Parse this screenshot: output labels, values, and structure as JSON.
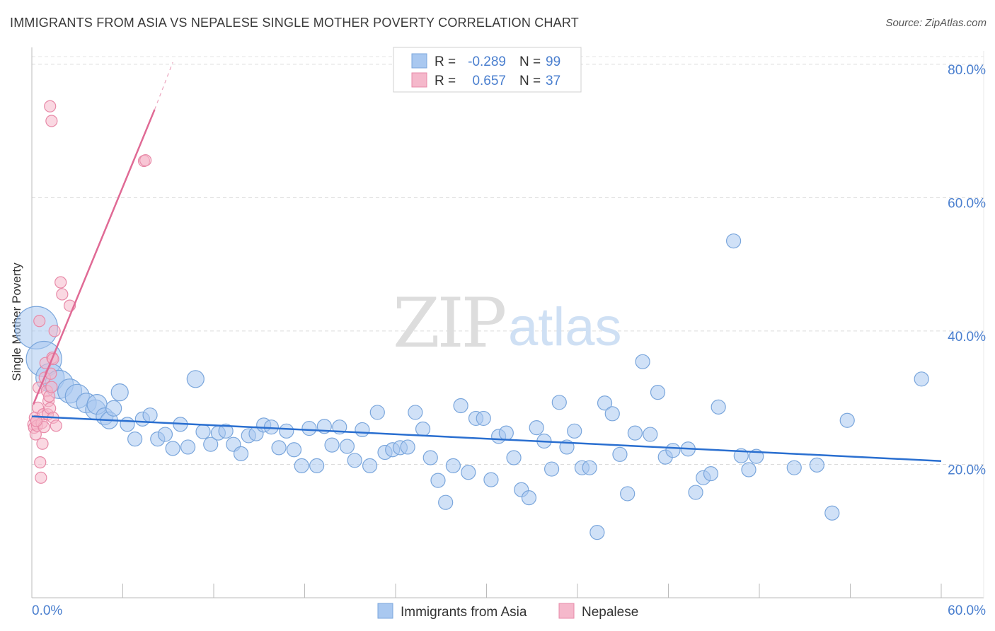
{
  "title": "IMMIGRANTS FROM ASIA VS NEPALESE SINGLE MOTHER POVERTY CORRELATION CHART",
  "source": "Source: ZipAtlas.com",
  "watermark": {
    "zip": "ZIP",
    "atlas": "atlas"
  },
  "legend_box": {
    "rows": [
      {
        "r_label": "R =",
        "r_value": "-0.289",
        "n_label": "N =",
        "n_value": "99",
        "color": "#a9c8f0"
      },
      {
        "r_label": "R =",
        "r_value": "0.657",
        "n_label": "N =",
        "n_value": "37",
        "color": "#f5b8cb"
      }
    ]
  },
  "chart_data": {
    "type": "scatter",
    "title": "IMMIGRANTS FROM ASIA VS NEPALESE SINGLE MOTHER POVERTY CORRELATION CHART",
    "xlabel": "",
    "ylabel": "Single Mother Poverty",
    "xlim": [
      0,
      60
    ],
    "ylim": [
      0,
      82
    ],
    "x_tick_labels": [
      "0.0%",
      "60.0%"
    ],
    "y_ticks": [
      20,
      40,
      60,
      80
    ],
    "y_tick_labels": [
      "20.0%",
      "40.0%",
      "60.0%",
      "80.0%"
    ],
    "grid": true,
    "colors": {
      "asia": "#a9c8f0",
      "asia_edge": "#7aa6dc",
      "asia_line": "#2a6fd0",
      "nepal": "#f5b8cb",
      "nepal_edge": "#e88aa8",
      "nepal_line": "#e06a95",
      "axis_text": "#4a7fcf"
    },
    "series": [
      {
        "name": "Immigrants from Asia",
        "trend": {
          "x0": 0,
          "y0": 27.2,
          "x1": 60,
          "y1": 20.5
        },
        "points": [
          [
            0.3,
            40.5,
            3
          ],
          [
            0.8,
            35.8,
            2.5
          ],
          [
            1.2,
            33.0,
            2
          ],
          [
            1.8,
            32.0,
            2
          ],
          [
            2.5,
            31.0,
            1.7
          ],
          [
            3.0,
            30.2,
            1.7
          ],
          [
            3.6,
            29.2,
            1.4
          ],
          [
            4.2,
            28.2,
            1.4
          ],
          [
            4.3,
            29.0,
            1.4
          ],
          [
            4.8,
            27.2,
            1.2
          ],
          [
            5.1,
            26.6,
            1.2
          ],
          [
            5.4,
            28.4,
            1.1
          ],
          [
            5.8,
            30.8,
            1.2
          ],
          [
            6.3,
            26.0,
            1
          ],
          [
            6.8,
            23.8,
            1
          ],
          [
            7.3,
            26.8,
            1
          ],
          [
            7.8,
            27.4,
            1
          ],
          [
            8.3,
            23.8,
            1
          ],
          [
            8.8,
            24.5,
            1
          ],
          [
            9.3,
            22.4,
            1
          ],
          [
            9.8,
            26.0,
            1
          ],
          [
            10.3,
            22.6,
            1
          ],
          [
            10.8,
            32.8,
            1.2
          ],
          [
            11.3,
            24.9,
            1
          ],
          [
            11.8,
            23.0,
            1
          ],
          [
            12.3,
            24.7,
            1
          ],
          [
            12.8,
            25.0,
            1
          ],
          [
            13.3,
            23.0,
            1
          ],
          [
            13.8,
            21.6,
            1
          ],
          [
            14.3,
            24.3,
            1
          ],
          [
            14.8,
            24.6,
            1
          ],
          [
            15.3,
            25.9,
            1
          ],
          [
            15.8,
            25.6,
            1
          ],
          [
            16.3,
            22.5,
            1
          ],
          [
            16.8,
            25.0,
            1
          ],
          [
            17.3,
            22.2,
            1
          ],
          [
            17.8,
            19.8,
            1
          ],
          [
            18.3,
            25.4,
            1
          ],
          [
            18.8,
            19.8,
            1
          ],
          [
            19.3,
            25.7,
            1
          ],
          [
            19.8,
            22.9,
            1
          ],
          [
            20.3,
            25.6,
            1
          ],
          [
            20.8,
            22.7,
            1
          ],
          [
            21.3,
            20.6,
            1
          ],
          [
            21.8,
            25.2,
            1
          ],
          [
            22.3,
            19.8,
            1
          ],
          [
            22.8,
            27.8,
            1
          ],
          [
            23.3,
            21.8,
            1
          ],
          [
            23.8,
            22.2,
            1
          ],
          [
            24.3,
            22.5,
            1
          ],
          [
            24.8,
            22.6,
            1
          ],
          [
            25.3,
            27.8,
            1
          ],
          [
            25.8,
            25.3,
            1
          ],
          [
            26.3,
            21.0,
            1
          ],
          [
            26.8,
            17.6,
            1
          ],
          [
            27.3,
            14.3,
            1
          ],
          [
            27.8,
            19.8,
            1
          ],
          [
            28.3,
            28.8,
            1
          ],
          [
            28.8,
            18.8,
            1
          ],
          [
            29.3,
            26.9,
            1
          ],
          [
            29.8,
            26.9,
            1
          ],
          [
            30.3,
            17.7,
            1
          ],
          [
            30.8,
            24.2,
            1
          ],
          [
            31.3,
            24.7,
            1
          ],
          [
            31.8,
            21.0,
            1
          ],
          [
            32.3,
            16.2,
            1
          ],
          [
            32.8,
            15.0,
            1
          ],
          [
            33.3,
            25.5,
            1
          ],
          [
            33.8,
            23.5,
            1
          ],
          [
            34.3,
            19.3,
            1
          ],
          [
            34.8,
            29.3,
            1
          ],
          [
            35.3,
            22.6,
            1
          ],
          [
            35.8,
            25.0,
            1
          ],
          [
            36.3,
            19.5,
            1
          ],
          [
            36.8,
            19.5,
            1
          ],
          [
            37.3,
            9.8,
            1
          ],
          [
            37.8,
            29.2,
            1
          ],
          [
            38.3,
            27.6,
            1
          ],
          [
            38.8,
            21.5,
            1
          ],
          [
            39.3,
            15.6,
            1
          ],
          [
            39.8,
            24.7,
            1
          ],
          [
            40.3,
            35.4,
            1
          ],
          [
            40.8,
            24.5,
            1
          ],
          [
            41.3,
            30.8,
            1
          ],
          [
            41.8,
            21.1,
            1
          ],
          [
            42.3,
            22.1,
            1
          ],
          [
            43.3,
            22.3,
            1
          ],
          [
            43.8,
            15.8,
            1
          ],
          [
            44.3,
            18.0,
            1
          ],
          [
            44.8,
            18.6,
            1
          ],
          [
            45.3,
            28.6,
            1
          ],
          [
            46.3,
            53.5,
            1
          ],
          [
            46.8,
            21.3,
            1
          ],
          [
            47.3,
            19.2,
            1
          ],
          [
            47.8,
            21.2,
            1
          ],
          [
            50.3,
            19.5,
            1
          ],
          [
            51.8,
            19.9,
            1
          ],
          [
            52.8,
            12.7,
            1
          ],
          [
            53.8,
            26.6,
            1
          ],
          [
            58.7,
            32.8,
            1
          ]
        ]
      },
      {
        "name": "Nepalese",
        "trend": {
          "x0": 0.1,
          "y0": 29.0,
          "x1": 8.1,
          "y1": 73.2,
          "dash_x1": 9.3,
          "dash_y1": 80.3
        },
        "points": [
          [
            0.1,
            26.0
          ],
          [
            0.15,
            25.5
          ],
          [
            0.2,
            27.0
          ],
          [
            0.25,
            24.5
          ],
          [
            0.3,
            26.5
          ],
          [
            0.35,
            25.8
          ],
          [
            0.4,
            28.5
          ],
          [
            0.45,
            31.5
          ],
          [
            0.5,
            41.5
          ],
          [
            0.55,
            20.3
          ],
          [
            0.6,
            18.0
          ],
          [
            0.65,
            26.2
          ],
          [
            0.7,
            23.1
          ],
          [
            0.75,
            27.5
          ],
          [
            0.8,
            25.6
          ],
          [
            0.85,
            33.0
          ],
          [
            0.9,
            35.2
          ],
          [
            1.0,
            31.0
          ],
          [
            1.05,
            27.5
          ],
          [
            1.1,
            29.5
          ],
          [
            1.15,
            30.2
          ],
          [
            1.2,
            28.4
          ],
          [
            1.25,
            33.6
          ],
          [
            1.3,
            31.6
          ],
          [
            1.4,
            27.0
          ],
          [
            1.2,
            73.7
          ],
          [
            1.3,
            71.5
          ],
          [
            1.35,
            36.0
          ],
          [
            1.4,
            35.8
          ],
          [
            1.5,
            40.0
          ],
          [
            1.6,
            25.8
          ],
          [
            1.9,
            47.3
          ],
          [
            2.0,
            45.5
          ],
          [
            2.5,
            43.8
          ],
          [
            7.4,
            65.5
          ],
          [
            7.5,
            65.6
          ],
          [
            0.3,
            26.5
          ]
        ]
      }
    ]
  },
  "bottom_legend": {
    "asia": "Immigrants from Asia",
    "nepal": "Nepalese"
  }
}
